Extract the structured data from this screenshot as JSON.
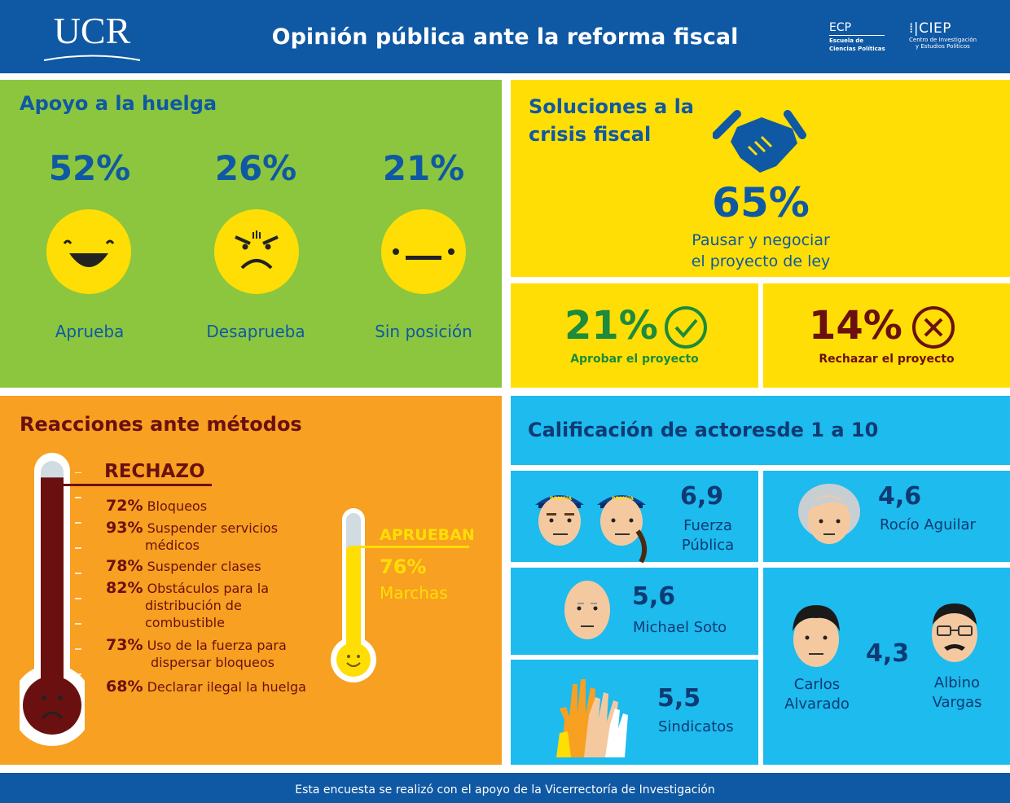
{
  "header": {
    "logo": "UCR",
    "title": "Opinión pública ante la reforma fiscal",
    "ecp": {
      "abbr": "ECP",
      "line1": "Escuela de",
      "line2": "Ciencias Políticas"
    },
    "ciep": {
      "abbr": "CIEP",
      "line1": "Centro de Investigación",
      "line2": "y Estudios Políticos"
    }
  },
  "huelga": {
    "title": "Apoyo a la huelga",
    "items": [
      {
        "pct": "52%",
        "label": "Aprueba",
        "face": "happy-face-icon"
      },
      {
        "pct": "26%",
        "label": "Desaprueba",
        "face": "angry-face-icon"
      },
      {
        "pct": "21%",
        "label": "Sin posición",
        "face": "neutral-face-icon"
      }
    ]
  },
  "soluciones": {
    "title_line1": "Soluciones a la",
    "title_line2": "crisis fiscal",
    "main_pct": "65%",
    "main_line1": "Pausar y negociar",
    "main_line2": "el proyecto de ley",
    "aprobar": {
      "pct": "21%",
      "label": "Aprobar el proyecto"
    },
    "rechazar": {
      "pct": "14%",
      "label": "Rechazar el proyecto"
    }
  },
  "reacciones": {
    "title": "Reacciones ante métodos",
    "rechazo_label": "RECHAZO",
    "items": [
      {
        "pct": "72%",
        "l1": "Bloqueos",
        "l2": "",
        "l3": ""
      },
      {
        "pct": "93%",
        "l1": "Suspender servicios",
        "l2": "médicos",
        "l3": ""
      },
      {
        "pct": "78%",
        "l1": "Suspender clases",
        "l2": "",
        "l3": ""
      },
      {
        "pct": "82%",
        "l1": "Obstáculos para la",
        "l2": "distribución de",
        "l3": "combustible"
      },
      {
        "pct": "73%",
        "l1": "Uso de la fuerza para",
        "l2": "dispersar bloqueos",
        "l3": ""
      },
      {
        "pct": "68%",
        "l1": "Declarar ilegal la huelga",
        "l2": "",
        "l3": ""
      }
    ],
    "aprueban_label": "APRUEBAN",
    "aprueban_pct": "76%",
    "aprueban_item": "Marchas",
    "rechazo_level": 0.93,
    "aprueban_level": 0.76
  },
  "calificacion": {
    "title": "Calificación de actoresde 1 a 10",
    "actors": [
      {
        "score": "6,9",
        "name1": "Fuerza",
        "name2": "Pública",
        "cap": "POLICÍA"
      },
      {
        "score": "4,6",
        "name1": "Rocío Aguilar",
        "name2": ""
      },
      {
        "score": "5,6",
        "name1": "Michael Soto",
        "name2": ""
      },
      {
        "score": "5,5",
        "name1": "Sindicatos",
        "name2": ""
      },
      {
        "score": "4,3",
        "name1": "Carlos",
        "name2": "Alvarado",
        "name3": "Albino",
        "name4": "Vargas"
      }
    ]
  },
  "footer": {
    "text": "Esta encuesta se realizó con el apoyo de la  Vicerrectoría de Investigación"
  },
  "colors": {
    "green": "#8cc63f",
    "yellow": "#ffde05",
    "orange": "#f7a021",
    "cyan": "#1dbbee",
    "navy": "#0f58a3",
    "darkred": "#6b1010"
  }
}
